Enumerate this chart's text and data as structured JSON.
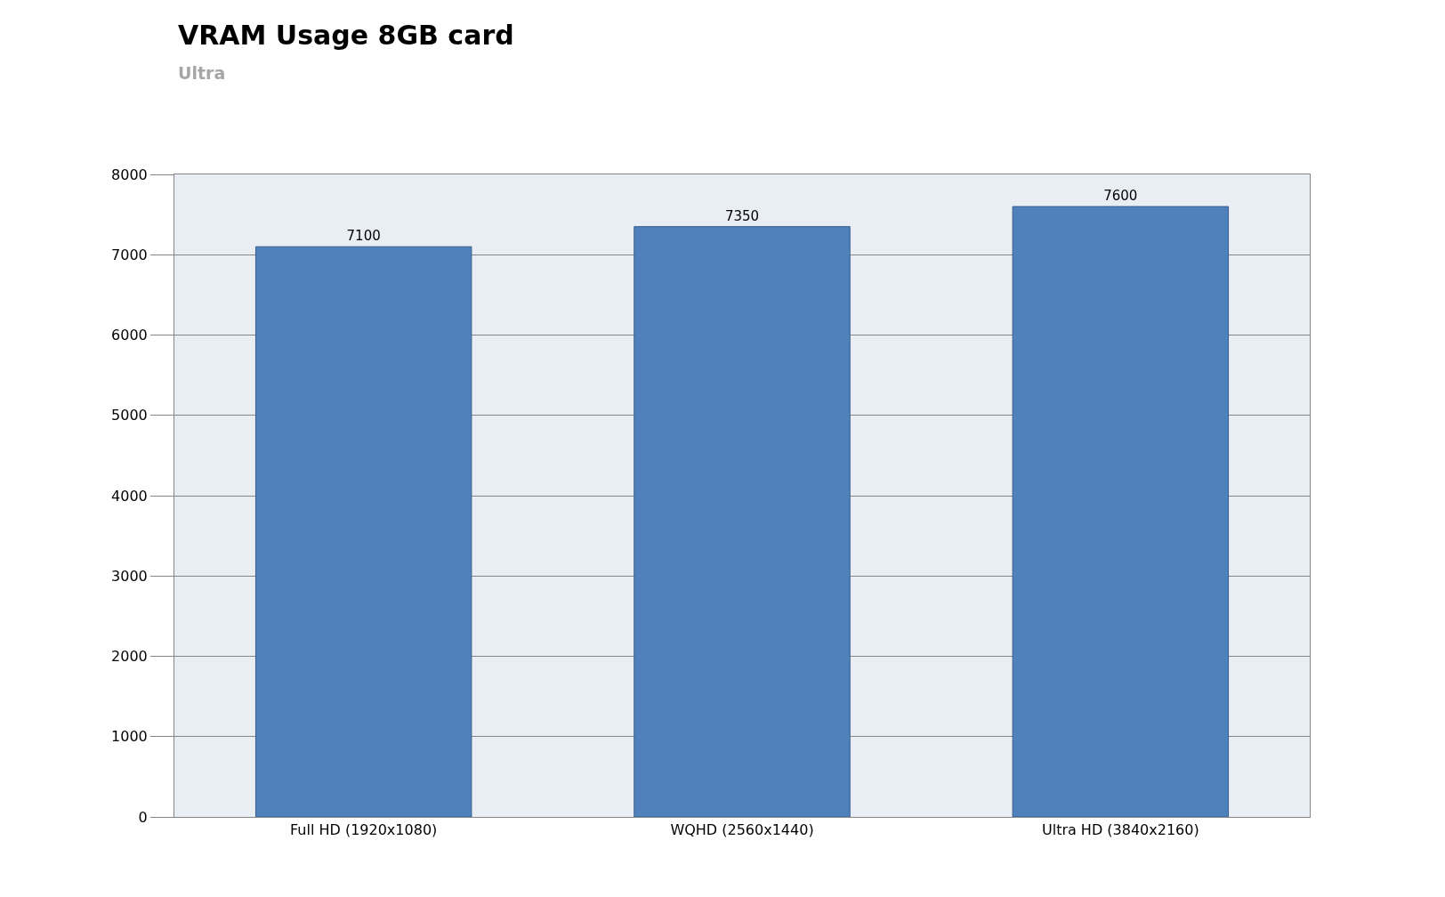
{
  "chart_data": {
    "type": "bar",
    "title": "VRAM Usage 8GB card",
    "subtitle": "Ultra",
    "categories": [
      "Full HD (1920x1080)",
      "WQHD (2560x1440)",
      "Ultra HD (3840x2160)"
    ],
    "values": [
      7100,
      7350,
      7600
    ],
    "color": "#4f81bd",
    "ylim": [
      0,
      8000
    ],
    "yticks": [
      0,
      1000,
      2000,
      3000,
      4000,
      5000,
      6000,
      7000,
      8000
    ],
    "grid": "y",
    "data_labels": true
  }
}
